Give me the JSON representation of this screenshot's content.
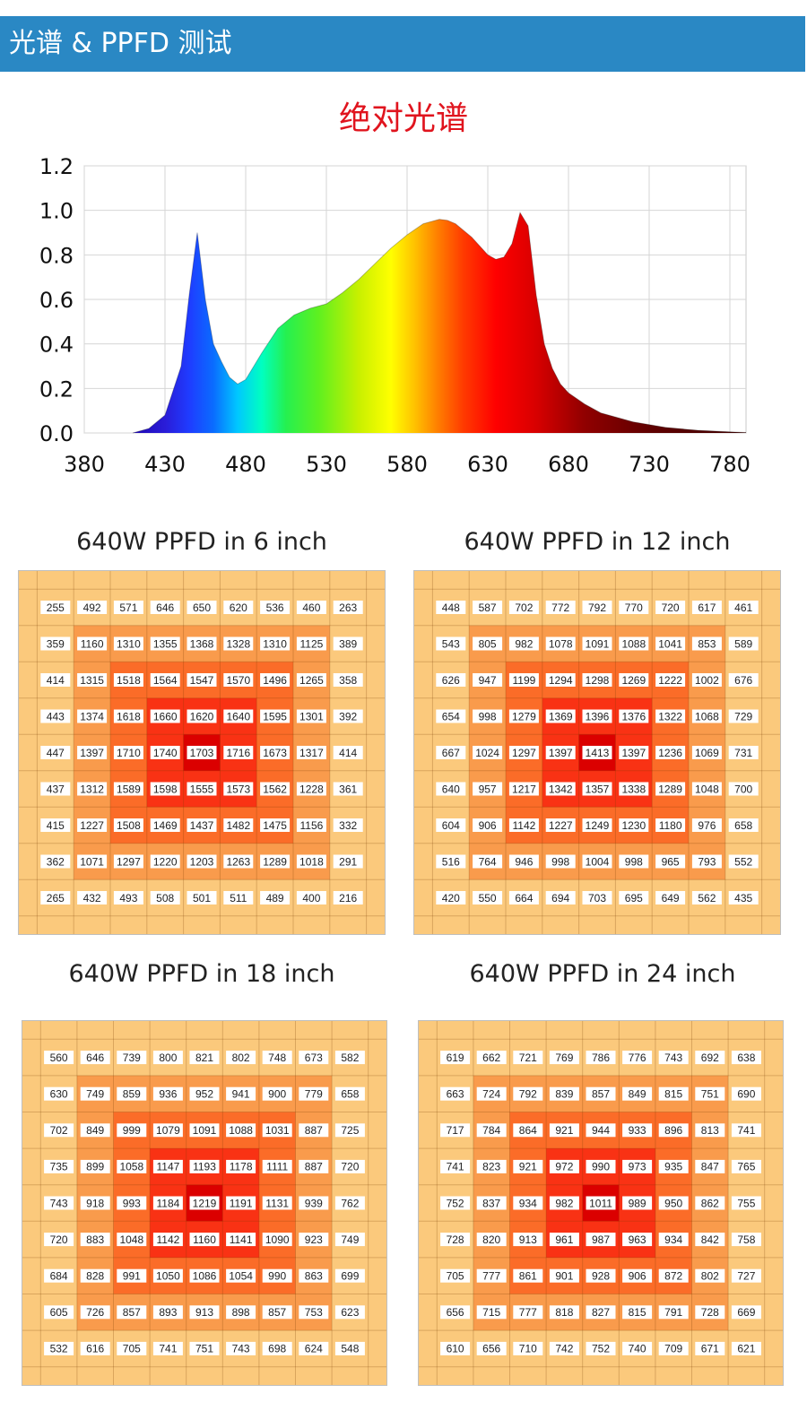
{
  "header": {
    "title": "光谱 & PPFD 测试"
  },
  "colors": {
    "header_bg": "#2a88c4",
    "spectrum_title": "#e0141e",
    "grid_levels": [
      "#fbc97c",
      "#f99b4c",
      "#fb6c28",
      "#f93214",
      "#db0000"
    ]
  },
  "chart_data": [
    {
      "type": "area",
      "title": "绝对光谱",
      "xlabel": "",
      "ylabel": "",
      "xlim": [
        380,
        790
      ],
      "ylim": [
        0,
        1.2
      ],
      "x_ticks": [
        380,
        430,
        480,
        530,
        580,
        630,
        680,
        730,
        780
      ],
      "y_ticks": [
        "0.0",
        "0.2",
        "0.4",
        "0.6",
        "0.8",
        "1.0",
        "1.2"
      ],
      "grid": true,
      "fill": "wavelength-rainbow",
      "series": [
        {
          "x": [
            410,
            420,
            430,
            440,
            445,
            450,
            455,
            460,
            465,
            470,
            475,
            480,
            490,
            500,
            510,
            520,
            530,
            540,
            550,
            560,
            570,
            580,
            590,
            600,
            605,
            610,
            620,
            630,
            635,
            640,
            645,
            650,
            655,
            660,
            665,
            670,
            675,
            680,
            690,
            700,
            720,
            740,
            760,
            780,
            790
          ],
          "y": [
            0.0,
            0.02,
            0.08,
            0.3,
            0.62,
            0.9,
            0.6,
            0.4,
            0.32,
            0.25,
            0.22,
            0.24,
            0.36,
            0.47,
            0.53,
            0.56,
            0.58,
            0.63,
            0.69,
            0.76,
            0.83,
            0.89,
            0.94,
            0.96,
            0.955,
            0.94,
            0.88,
            0.8,
            0.78,
            0.79,
            0.85,
            0.99,
            0.93,
            0.62,
            0.4,
            0.29,
            0.22,
            0.18,
            0.13,
            0.09,
            0.05,
            0.025,
            0.012,
            0.005,
            0.002
          ]
        }
      ]
    },
    {
      "type": "heatmap",
      "title": "640W PPFD in 6 inch",
      "rows": [
        [
          255,
          492,
          571,
          646,
          650,
          620,
          536,
          460,
          263
        ],
        [
          359,
          1160,
          1310,
          1355,
          1368,
          1328,
          1310,
          1125,
          389
        ],
        [
          414,
          1315,
          1518,
          1564,
          1547,
          1570,
          1496,
          1265,
          358
        ],
        [
          443,
          1374,
          1618,
          1660,
          1620,
          1640,
          1595,
          1301,
          392
        ],
        [
          447,
          1397,
          1710,
          1740,
          1703,
          1716,
          1673,
          1317,
          414
        ],
        [
          437,
          1312,
          1589,
          1598,
          1555,
          1573,
          1562,
          1228,
          361
        ],
        [
          415,
          1227,
          1508,
          1469,
          1437,
          1482,
          1475,
          1156,
          332
        ],
        [
          362,
          1071,
          1297,
          1220,
          1203,
          1263,
          1289,
          1018,
          291
        ],
        [
          265,
          432,
          493,
          508,
          501,
          511,
          489,
          400,
          216
        ]
      ]
    },
    {
      "type": "heatmap",
      "title": "640W PPFD in 12 inch",
      "rows": [
        [
          448,
          587,
          702,
          772,
          792,
          770,
          720,
          617,
          461
        ],
        [
          543,
          805,
          982,
          1078,
          1091,
          1088,
          1041,
          853,
          589
        ],
        [
          626,
          947,
          1199,
          1294,
          1298,
          1269,
          1222,
          1002,
          676
        ],
        [
          654,
          998,
          1279,
          1369,
          1396,
          1376,
          1322,
          1068,
          729
        ],
        [
          667,
          1024,
          1297,
          1397,
          1413,
          1397,
          1236,
          1069,
          731
        ],
        [
          640,
          957,
          1217,
          1342,
          1357,
          1338,
          1289,
          1048,
          700
        ],
        [
          604,
          906,
          1142,
          1227,
          1249,
          1230,
          1180,
          976,
          658
        ],
        [
          516,
          764,
          946,
          998,
          1004,
          998,
          965,
          793,
          552
        ],
        [
          420,
          550,
          664,
          694,
          703,
          695,
          649,
          562,
          435
        ]
      ]
    },
    {
      "type": "heatmap",
      "title": "640W PPFD in 18 inch",
      "rows": [
        [
          560,
          646,
          739,
          800,
          821,
          802,
          748,
          673,
          582
        ],
        [
          630,
          749,
          859,
          936,
          952,
          941,
          900,
          779,
          658
        ],
        [
          702,
          849,
          999,
          1079,
          1091,
          1088,
          1031,
          887,
          725
        ],
        [
          735,
          899,
          1058,
          1147,
          1193,
          1178,
          1111,
          887,
          720
        ],
        [
          743,
          918,
          993,
          1184,
          1219,
          1191,
          1131,
          939,
          762
        ],
        [
          720,
          883,
          1048,
          1142,
          1160,
          1141,
          1090,
          923,
          749
        ],
        [
          684,
          828,
          991,
          1050,
          1086,
          1054,
          990,
          863,
          699
        ],
        [
          605,
          726,
          857,
          893,
          913,
          898,
          857,
          753,
          623
        ],
        [
          532,
          616,
          705,
          741,
          751,
          743,
          698,
          624,
          548
        ]
      ]
    },
    {
      "type": "heatmap",
      "title": "640W PPFD in 24 inch",
      "rows": [
        [
          619,
          662,
          721,
          769,
          786,
          776,
          743,
          692,
          638
        ],
        [
          663,
          724,
          792,
          839,
          857,
          849,
          815,
          751,
          690
        ],
        [
          717,
          784,
          864,
          921,
          944,
          933,
          896,
          813,
          741
        ],
        [
          741,
          823,
          921,
          972,
          990,
          973,
          935,
          847,
          765
        ],
        [
          752,
          837,
          934,
          982,
          1011,
          989,
          950,
          862,
          755
        ],
        [
          728,
          820,
          913,
          961,
          987,
          963,
          934,
          842,
          758
        ],
        [
          705,
          777,
          861,
          901,
          928,
          906,
          872,
          802,
          727
        ],
        [
          656,
          715,
          777,
          818,
          827,
          815,
          791,
          728,
          669
        ],
        [
          610,
          656,
          710,
          742,
          752,
          740,
          709,
          671,
          621
        ]
      ]
    }
  ]
}
